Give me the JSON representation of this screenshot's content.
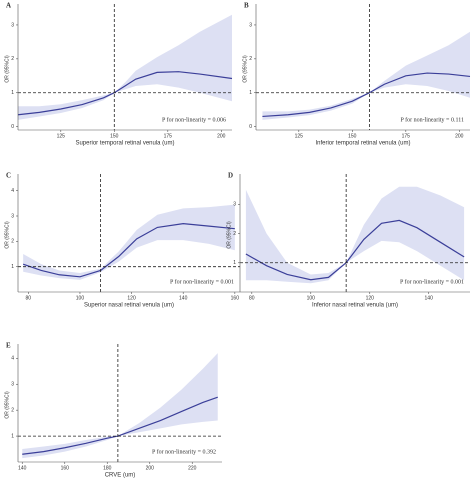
{
  "chart_data": [
    {
      "type": "line",
      "panel": "A",
      "xlabel": "Superior temporal retinal venula (um)",
      "ylabel": "OR (95%CI)",
      "annotation": "P for non-linearity = 0.006",
      "x": [
        105,
        115,
        125,
        135,
        145,
        150,
        155,
        160,
        170,
        180,
        190,
        205
      ],
      "values": [
        0.35,
        0.42,
        0.52,
        0.65,
        0.85,
        1.0,
        1.2,
        1.4,
        1.6,
        1.62,
        1.55,
        1.42
      ],
      "ci_lower": [
        0.2,
        0.3,
        0.4,
        0.55,
        0.78,
        1.0,
        1.1,
        1.2,
        1.25,
        1.15,
        1.0,
        0.75
      ],
      "ci_upper": [
        0.6,
        0.6,
        0.66,
        0.78,
        0.92,
        1.0,
        1.3,
        1.65,
        2.05,
        2.4,
        2.8,
        3.3
      ],
      "color": "#3b3f99",
      "band_color": "#dde0f3",
      "xlim": [
        105,
        205
      ],
      "xticks": [
        125,
        150,
        175,
        200
      ],
      "ylim": [
        -0.1,
        3.5
      ],
      "yticks": [
        0,
        1,
        2,
        3
      ],
      "ref_x": 150,
      "ref_y": 1
    },
    {
      "type": "line",
      "panel": "B",
      "xlabel": "Inferior temporal retinal venula (um)",
      "ylabel": "OR (95%CI)",
      "annotation": "P for non-linearity = 0.111",
      "x": [
        108,
        120,
        130,
        140,
        150,
        158,
        165,
        175,
        185,
        195,
        205
      ],
      "values": [
        0.3,
        0.35,
        0.42,
        0.55,
        0.75,
        1.0,
        1.25,
        1.5,
        1.58,
        1.55,
        1.48
      ],
      "ci_lower": [
        0.2,
        0.27,
        0.34,
        0.47,
        0.68,
        1.0,
        1.15,
        1.25,
        1.2,
        1.05,
        0.85
      ],
      "ci_upper": [
        0.45,
        0.45,
        0.5,
        0.62,
        0.82,
        1.0,
        1.35,
        1.8,
        2.1,
        2.4,
        2.8
      ],
      "color": "#3b3f99",
      "band_color": "#dde0f3",
      "xlim": [
        105,
        205
      ],
      "xticks": [
        125,
        150,
        175,
        200
      ],
      "ylim": [
        -0.1,
        3.5
      ],
      "yticks": [
        0,
        1,
        2,
        3
      ],
      "ref_x": 158,
      "ref_y": 1
    },
    {
      "type": "line",
      "panel": "C",
      "xlabel": "Superior nasal retinal venula (um)",
      "ylabel": "OR (95%CI)",
      "annotation": "P for non-linearity = 0.001",
      "x": [
        78,
        85,
        92,
        100,
        108,
        115,
        122,
        130,
        140,
        150,
        160
      ],
      "values": [
        1.1,
        0.85,
        0.68,
        0.6,
        0.85,
        1.4,
        2.1,
        2.55,
        2.7,
        2.6,
        2.5
      ],
      "ci_lower": [
        0.8,
        0.65,
        0.55,
        0.48,
        0.78,
        1.2,
        1.75,
        2.05,
        2.05,
        1.9,
        1.65
      ],
      "ci_upper": [
        1.5,
        1.1,
        0.85,
        0.75,
        0.92,
        1.6,
        2.45,
        3.05,
        3.3,
        3.35,
        3.45
      ],
      "color": "#3b3f99",
      "band_color": "#dde0f3",
      "xlim": [
        76,
        162
      ],
      "xticks": [
        80,
        100,
        120,
        140,
        160
      ],
      "ylim": [
        0,
        4.5
      ],
      "yticks": [
        1,
        2,
        3,
        4
      ],
      "ref_x": 108,
      "ref_y": 1
    },
    {
      "type": "line",
      "panel": "D",
      "xlabel": "Inferior nasal retinal venula (um)",
      "ylabel": "OR (95%CI)",
      "annotation": "P for non-linearity = 0.001",
      "x": [
        78,
        85,
        92,
        100,
        106,
        112,
        118,
        124,
        130,
        136,
        144,
        152
      ],
      "values": [
        1.3,
        0.9,
        0.6,
        0.42,
        0.5,
        1.0,
        1.8,
        2.35,
        2.45,
        2.2,
        1.7,
        1.2
      ],
      "ci_lower": [
        0.4,
        0.4,
        0.35,
        0.3,
        0.4,
        1.0,
        1.4,
        1.75,
        1.7,
        1.4,
        0.9,
        0.4
      ],
      "ci_upper": [
        3.5,
        2.0,
        1.0,
        0.6,
        0.65,
        1.0,
        2.3,
        3.2,
        3.6,
        3.6,
        3.3,
        2.9
      ],
      "color": "#3b3f99",
      "band_color": "#dde0f3",
      "xlim": [
        76,
        154
      ],
      "xticks": [
        80,
        100,
        120,
        140
      ],
      "ylim": [
        0,
        3.9
      ],
      "yticks": [
        1,
        2,
        3
      ],
      "ref_x": 112,
      "ref_y": 1
    },
    {
      "type": "line",
      "panel": "E",
      "xlabel": "CRVE (um)",
      "ylabel": "OR (95%CI)",
      "annotation": "P for non-linearity = 0.392",
      "x": [
        140,
        150,
        160,
        170,
        180,
        185,
        195,
        205,
        215,
        225,
        232
      ],
      "values": [
        0.3,
        0.4,
        0.55,
        0.72,
        0.92,
        1.0,
        1.3,
        1.6,
        1.95,
        2.3,
        2.5
      ],
      "ci_lower": [
        0.15,
        0.25,
        0.4,
        0.6,
        0.85,
        1.0,
        1.15,
        1.3,
        1.45,
        1.55,
        1.6
      ],
      "ci_upper": [
        0.5,
        0.6,
        0.7,
        0.85,
        0.98,
        1.0,
        1.5,
        2.1,
        2.8,
        3.6,
        4.2
      ],
      "color": "#3b3f99",
      "band_color": "#dde0f3",
      "xlim": [
        138,
        234
      ],
      "xticks": [
        140,
        160,
        180,
        200,
        220
      ],
      "ylim": [
        0,
        4.4
      ],
      "yticks": [
        1,
        2,
        3,
        4
      ],
      "ref_x": 185,
      "ref_y": 1
    }
  ]
}
